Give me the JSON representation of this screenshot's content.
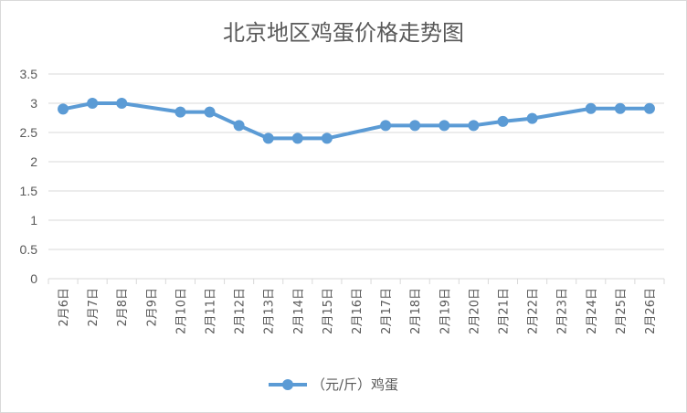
{
  "chart_data": {
    "type": "line",
    "title": "北京地区鸡蛋价格走势图",
    "xlabel": "",
    "ylabel": "",
    "ylim": [
      0,
      3.5
    ],
    "yticks": [
      "0",
      "0.5",
      "1",
      "1.5",
      "2",
      "2.5",
      "3",
      "3.5"
    ],
    "grid": true,
    "legend_position": "bottom",
    "categories": [
      "2月6日",
      "2月7日",
      "2月8日",
      "2月9日",
      "2月10日",
      "2月11日",
      "2月12日",
      "2月13日",
      "2月14日",
      "2月15日",
      "2月16日",
      "2月17日",
      "2月18日",
      "2月19日",
      "2月20日",
      "2月21日",
      "2月22日",
      "2月23日",
      "2月24日",
      "2月25日",
      "2月26日"
    ],
    "series": [
      {
        "name": "（元/斤）鸡蛋",
        "color": "#5b9bd5",
        "values": [
          2.9,
          3.0,
          3.0,
          null,
          2.85,
          2.85,
          2.62,
          2.4,
          2.4,
          2.4,
          null,
          2.62,
          2.62,
          2.62,
          2.62,
          2.69,
          2.74,
          null,
          2.91,
          2.91,
          2.91
        ]
      }
    ]
  }
}
